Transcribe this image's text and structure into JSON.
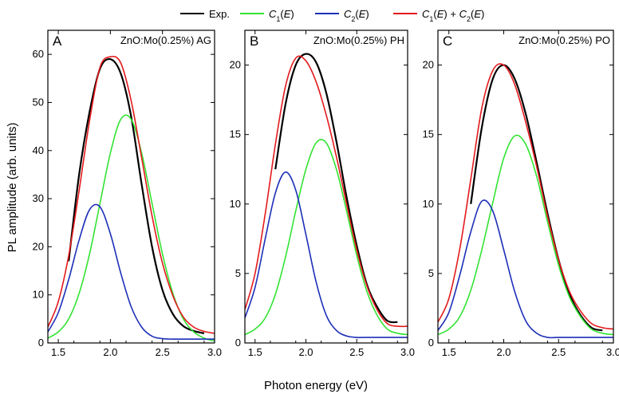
{
  "legend": [
    {
      "label": "Exp.",
      "color": "#000000"
    },
    {
      "label": "C1(E)",
      "color": "#33e333"
    },
    {
      "label": "C2(E)",
      "color": "#1d2fb8"
    },
    {
      "label": "C1(E) + C2(E)",
      "color": "#e31a1c"
    }
  ],
  "xlabel": "Photon energy (eV)",
  "ylabel": "PL amplitude (arb. units)",
  "chart_data": [
    {
      "type": "line",
      "panel_letter": "A",
      "title": "ZnO:Mo(0.25%) AG",
      "xlim": [
        1.4,
        3.0
      ],
      "ylim": [
        0,
        65
      ],
      "xticks": [
        1.5,
        2.0,
        2.5,
        3.0
      ],
      "yticks": [
        0,
        10,
        20,
        30,
        40,
        50,
        60
      ],
      "x": [
        1.4,
        1.5,
        1.6,
        1.7,
        1.8,
        1.9,
        2.0,
        2.1,
        2.2,
        2.3,
        2.4,
        2.5,
        2.6,
        2.7,
        2.8,
        2.9,
        3.0
      ],
      "series": [
        {
          "name": "Exp.",
          "color": "#000000",
          "x_range": [
            1.6,
            2.94
          ],
          "values": [
            null,
            null,
            17,
            35,
            48,
            57,
            59,
            56,
            47,
            33,
            20,
            11,
            6,
            3.5,
            2.5,
            2,
            null
          ]
        },
        {
          "name": "C1(E)",
          "color": "#33e333",
          "values": [
            1.0,
            2.3,
            5.0,
            10.3,
            18.5,
            29.0,
            39.5,
            46.5,
            46.5,
            39.5,
            29.0,
            18.5,
            10.3,
            5.0,
            2.3,
            1.0,
            0.4
          ]
        },
        {
          "name": "C2(E)",
          "color": "#1d2fb8",
          "values": [
            2.3,
            6.3,
            13.2,
            21.4,
            27.7,
            28.3,
            22.7,
            14.5,
            7.5,
            3.3,
            1.4,
            0.9,
            0.8,
            0.8,
            0.8,
            0.8,
            0.8
          ]
        },
        {
          "name": "C1(E) + C2(E)",
          "color": "#e31a1c",
          "values": [
            3.3,
            8.6,
            18.2,
            31.7,
            46.2,
            57.3,
            59.5,
            58.2,
            50.3,
            38.5,
            26.4,
            16.6,
            9.8,
            5.4,
            3.3,
            2.4,
            2.0
          ]
        }
      ]
    },
    {
      "type": "line",
      "panel_letter": "B",
      "title": "ZnO:Mo(0.25%) PH",
      "xlim": [
        1.4,
        3.0
      ],
      "ylim": [
        0,
        22.5
      ],
      "xticks": [
        1.5,
        2.0,
        2.5,
        3.0
      ],
      "yticks": [
        0,
        5,
        10,
        15,
        20
      ],
      "x": [
        1.4,
        1.5,
        1.6,
        1.7,
        1.8,
        1.9,
        2.0,
        2.1,
        2.2,
        2.3,
        2.4,
        2.5,
        2.6,
        2.7,
        2.8,
        2.9,
        3.0
      ],
      "series": [
        {
          "name": "Exp.",
          "color": "#000000",
          "x_range": [
            1.65,
            2.88
          ],
          "values": [
            null,
            null,
            null,
            12.5,
            17.2,
            20.0,
            20.8,
            20.2,
            18.0,
            14.5,
            10.5,
            7.0,
            4.2,
            2.6,
            1.6,
            1.5,
            null
          ]
        },
        {
          "name": "C1(E)",
          "color": "#33e333",
          "values": [
            0.6,
            1.0,
            1.8,
            3.5,
            6.2,
            9.5,
            12.5,
            14.4,
            14.4,
            12.5,
            9.5,
            6.3,
            3.7,
            2.0,
            1.0,
            0.7,
            0.6
          ]
        },
        {
          "name": "C2(E)",
          "color": "#1d2fb8",
          "values": [
            1.8,
            4.0,
            7.5,
            10.8,
            12.3,
            11.0,
            7.8,
            4.4,
            2.0,
            0.9,
            0.5,
            0.4,
            0.4,
            0.4,
            0.4,
            0.4,
            0.4
          ]
        },
        {
          "name": "C1(E) + C2(E)",
          "color": "#e31a1c",
          "values": [
            2.4,
            5.0,
            9.3,
            14.3,
            18.5,
            20.5,
            20.3,
            18.8,
            16.4,
            13.4,
            10.0,
            6.7,
            4.1,
            2.4,
            1.4,
            1.2,
            1.2
          ]
        }
      ]
    },
    {
      "type": "line",
      "panel_letter": "C",
      "title": "ZnO:Mo(0.25%) PO",
      "xlim": [
        1.4,
        3.0
      ],
      "ylim": [
        0,
        22.5
      ],
      "xticks": [
        1.5,
        2.0,
        2.5,
        3.0
      ],
      "yticks": [
        0,
        5,
        10,
        15,
        20
      ],
      "x": [
        1.4,
        1.5,
        1.6,
        1.7,
        1.8,
        1.9,
        2.0,
        2.1,
        2.2,
        2.3,
        2.4,
        2.5,
        2.6,
        2.7,
        2.8,
        2.9,
        3.0
      ],
      "series": [
        {
          "name": "Exp.",
          "color": "#000000",
          "x_range": [
            1.63,
            2.9
          ],
          "values": [
            null,
            null,
            null,
            10.0,
            15.5,
            19.0,
            20.0,
            19.0,
            16.5,
            13.0,
            9.3,
            6.0,
            3.5,
            2.0,
            1.1,
            0.9,
            null
          ]
        },
        {
          "name": "C1(E)",
          "color": "#33e333",
          "values": [
            0.6,
            1.0,
            1.9,
            3.8,
            6.7,
            10.1,
            13.3,
            14.9,
            14.3,
            12.0,
            8.7,
            5.6,
            3.3,
            1.9,
            1.0,
            0.7,
            0.6
          ]
        },
        {
          "name": "C2(E)",
          "color": "#1d2fb8",
          "values": [
            0.9,
            2.2,
            4.9,
            8.0,
            10.2,
            9.5,
            6.7,
            3.7,
            1.6,
            0.7,
            0.4,
            0.4,
            0.4,
            0.4,
            0.4,
            0.4,
            0.4
          ]
        },
        {
          "name": "C1(E) + C2(E)",
          "color": "#e31a1c",
          "values": [
            1.5,
            3.2,
            6.8,
            11.8,
            16.9,
            19.6,
            20.0,
            18.6,
            15.9,
            12.7,
            9.1,
            6.0,
            3.7,
            2.3,
            1.4,
            1.1,
            1.0
          ]
        }
      ]
    }
  ]
}
